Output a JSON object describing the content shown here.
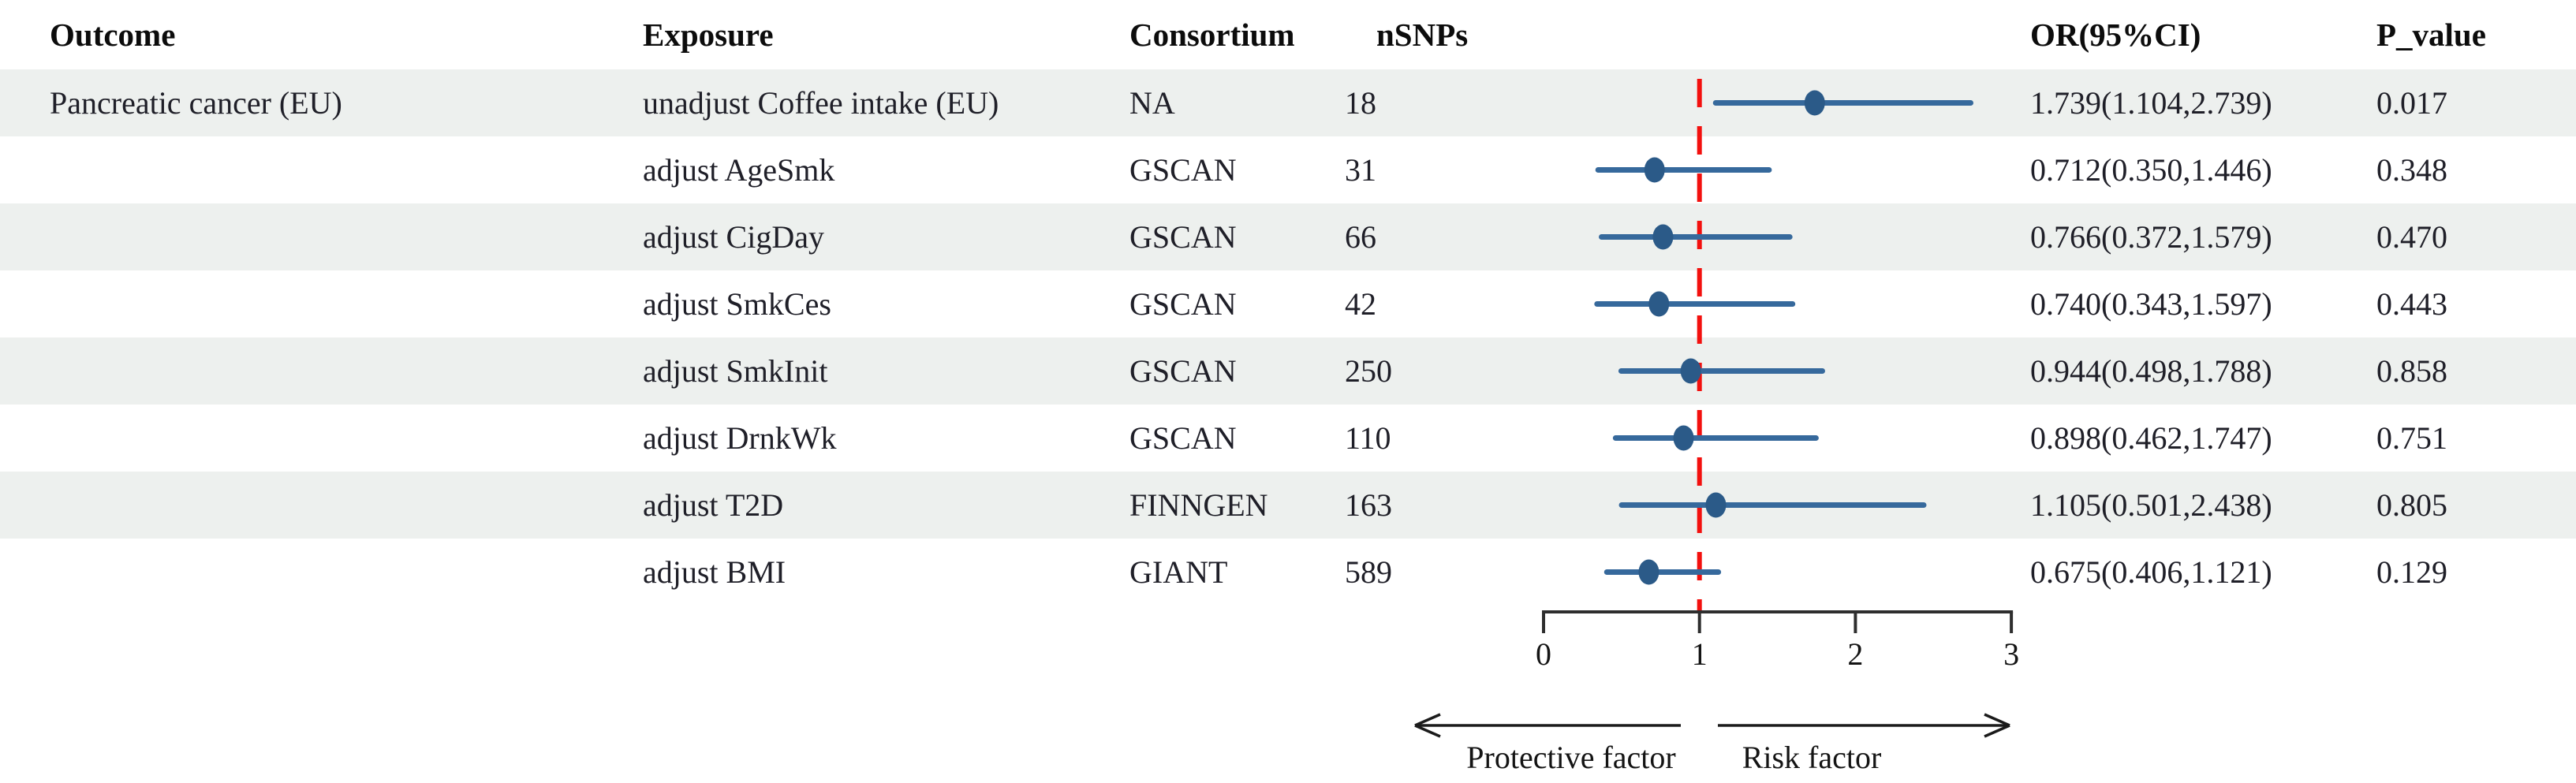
{
  "header": {
    "outcome": "Outcome",
    "exposure": "Exposure",
    "consortium": "Consortium",
    "nsnps": "nSNPs",
    "or_ci": "OR(95%CI)",
    "p_value": "P_value"
  },
  "rows": [
    {
      "outcome": "Pancreatic cancer (EU)",
      "exposure": "unadjust Coffee intake (EU)",
      "consortium": "NA",
      "nsnps": "18",
      "or_ci": "1.739(1.104,2.739)",
      "p_value": "0.017"
    },
    {
      "outcome": "",
      "exposure": "adjust AgeSmk",
      "consortium": "GSCAN",
      "nsnps": "31",
      "or_ci": "0.712(0.350,1.446)",
      "p_value": "0.348"
    },
    {
      "outcome": "",
      "exposure": "adjust CigDay",
      "consortium": "GSCAN",
      "nsnps": "66",
      "or_ci": "0.766(0.372,1.579)",
      "p_value": "0.470"
    },
    {
      "outcome": "",
      "exposure": "adjust SmkCes",
      "consortium": "GSCAN",
      "nsnps": "42",
      "or_ci": "0.740(0.343,1.597)",
      "p_value": "0.443"
    },
    {
      "outcome": "",
      "exposure": "adjust SmkInit",
      "consortium": "GSCAN",
      "nsnps": "250",
      "or_ci": "0.944(0.498,1.788)",
      "p_value": "0.858"
    },
    {
      "outcome": "",
      "exposure": "adjust DrnkWk",
      "consortium": "GSCAN",
      "nsnps": "110",
      "or_ci": "0.898(0.462,1.747)",
      "p_value": "0.751"
    },
    {
      "outcome": "",
      "exposure": "adjust T2D",
      "consortium": "FINNGEN",
      "nsnps": "163",
      "or_ci": "1.105(0.501,2.438)",
      "p_value": "0.805"
    },
    {
      "outcome": "",
      "exposure": "adjust BMI",
      "consortium": "GIANT",
      "nsnps": "589",
      "or_ci": "0.675(0.406,1.121)",
      "p_value": "0.129"
    }
  ],
  "axis": {
    "tick_labels": [
      "0",
      "1",
      "2",
      "3"
    ],
    "reference_value": 1
  },
  "annotations": {
    "protective_label": "Protective factor",
    "risk_label": "Risk factor"
  },
  "colors": {
    "ci_line": "#36699c",
    "point": "#2b5a88",
    "reference_line": "#f3100e",
    "axis": "#2e2e2e",
    "arrow": "#1b1b1b",
    "row_stripe": "#edf0ee"
  },
  "chart_data": {
    "type": "forest",
    "title": "",
    "outcome": "Pancreatic cancer (EU)",
    "categories": [
      "unadjust Coffee intake (EU)",
      "adjust AgeSmk",
      "adjust CigDay",
      "adjust SmkCes",
      "adjust SmkInit",
      "adjust DrnkWk",
      "adjust T2D",
      "adjust BMI"
    ],
    "consortia": [
      "NA",
      "GSCAN",
      "GSCAN",
      "GSCAN",
      "GSCAN",
      "GSCAN",
      "FINNGEN",
      "GIANT"
    ],
    "nsnps": [
      18,
      31,
      66,
      42,
      250,
      110,
      163,
      589
    ],
    "series": [
      {
        "name": "OR",
        "values": [
          1.739,
          0.712,
          0.766,
          0.74,
          0.944,
          0.898,
          1.105,
          0.675
        ]
      },
      {
        "name": "CI_lower",
        "values": [
          1.104,
          0.35,
          0.372,
          0.343,
          0.498,
          0.462,
          0.501,
          0.406
        ]
      },
      {
        "name": "CI_upper",
        "values": [
          2.739,
          1.446,
          1.579,
          1.597,
          1.788,
          1.747,
          2.438,
          1.121
        ]
      }
    ],
    "p_values": [
      0.017,
      0.348,
      0.47,
      0.443,
      0.858,
      0.751,
      0.805,
      0.129
    ],
    "x_ticks": [
      0,
      1,
      2,
      3
    ],
    "xlim": [
      0,
      3
    ],
    "reference_line": 1,
    "orientation": "horizontal",
    "xlabel_left": "Protective factor",
    "xlabel_right": "Risk factor",
    "grid": false,
    "legend": false
  }
}
